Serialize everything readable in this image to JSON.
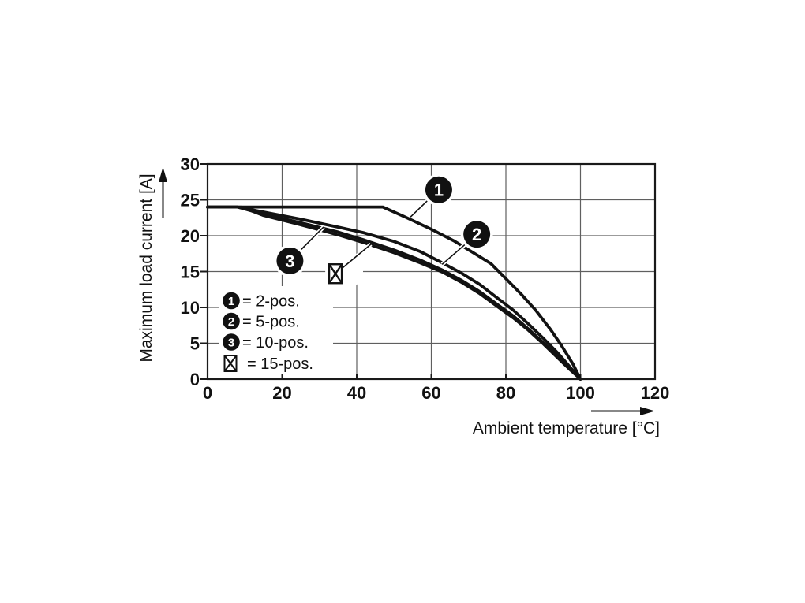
{
  "chart_data": {
    "type": "line",
    "title": "",
    "xlabel": "Ambient temperature [°C]",
    "ylabel": "Maximum load current [A]",
    "xlim": [
      0,
      120
    ],
    "ylim": [
      0,
      30
    ],
    "xticks": [
      0,
      20,
      40,
      60,
      80,
      100,
      120
    ],
    "yticks": [
      0,
      5,
      10,
      15,
      20,
      25,
      30
    ],
    "grid": true,
    "grid_color": "#5f5f5f",
    "frame_color": "#1a1a1a",
    "curve_color": "#121212",
    "background_color": "#ffffff",
    "series": [
      {
        "name": "2-pos.",
        "badge": "1",
        "points": [
          [
            0,
            24
          ],
          [
            47,
            24
          ],
          [
            53,
            22.6
          ],
          [
            60,
            20.9
          ],
          [
            66,
            19.3
          ],
          [
            72,
            17.4
          ],
          [
            76,
            16.1
          ],
          [
            80,
            14.0
          ],
          [
            84,
            11.9
          ],
          [
            88,
            9.6
          ],
          [
            92,
            6.9
          ],
          [
            95,
            4.6
          ],
          [
            98,
            2.1
          ],
          [
            100,
            0
          ]
        ]
      },
      {
        "name": "5-pos.",
        "badge": "2",
        "points": [
          [
            0,
            24
          ],
          [
            8,
            24
          ],
          [
            15,
            23.3
          ],
          [
            25,
            22.3
          ],
          [
            35,
            21.2
          ],
          [
            42,
            20.4
          ],
          [
            50,
            19.2
          ],
          [
            57,
            17.8
          ],
          [
            63,
            16.2
          ],
          [
            68,
            14.8
          ],
          [
            73,
            13.2
          ],
          [
            78,
            11.2
          ],
          [
            82,
            9.6
          ],
          [
            86,
            7.7
          ],
          [
            90,
            5.7
          ],
          [
            94,
            3.6
          ],
          [
            97,
            1.8
          ],
          [
            100,
            0
          ]
        ]
      },
      {
        "name": "10-pos.",
        "badge": "3",
        "points": [
          [
            0,
            24
          ],
          [
            8,
            24
          ],
          [
            15,
            23.0
          ],
          [
            25,
            21.8
          ],
          [
            35,
            20.5
          ],
          [
            42,
            19.4
          ],
          [
            50,
            18.0
          ],
          [
            57,
            16.6
          ],
          [
            63,
            15.2
          ],
          [
            68,
            13.8
          ],
          [
            73,
            12.2
          ],
          [
            78,
            10.3
          ],
          [
            82,
            8.8
          ],
          [
            86,
            7.0
          ],
          [
            90,
            5.1
          ],
          [
            94,
            3.1
          ],
          [
            97,
            1.5
          ],
          [
            100,
            0
          ]
        ]
      },
      {
        "name": "15-pos.",
        "badge": "box-x",
        "points": [
          [
            0,
            24
          ],
          [
            9,
            24
          ],
          [
            15,
            22.8
          ],
          [
            25,
            21.5
          ],
          [
            35,
            20.1
          ],
          [
            42,
            19.0
          ],
          [
            50,
            17.6
          ],
          [
            57,
            16.2
          ],
          [
            63,
            14.9
          ],
          [
            68,
            13.5
          ],
          [
            73,
            11.9
          ],
          [
            78,
            10.0
          ],
          [
            82,
            8.5
          ],
          [
            86,
            6.8
          ],
          [
            90,
            4.9
          ],
          [
            94,
            2.9
          ],
          [
            97,
            1.4
          ],
          [
            100,
            0
          ]
        ]
      }
    ],
    "legend": {
      "position": "inside-bottom-left",
      "items": [
        {
          "badge": "1",
          "label": "= 2-pos."
        },
        {
          "badge": "2",
          "label": "= 5-pos."
        },
        {
          "badge": "3",
          "label": "= 10-pos."
        },
        {
          "badge": "box-x",
          "label": "= 15-pos."
        }
      ]
    },
    "annotations": [
      {
        "badge": "1",
        "x": 62.0,
        "y": 26.4,
        "target_x": 54.4,
        "target_y": 22.6
      },
      {
        "badge": "2",
        "x": 72.2,
        "y": 20.2,
        "target_x": 62.9,
        "target_y": 16.0
      },
      {
        "badge": "3",
        "x": 22.1,
        "y": 16.5,
        "target_x": 31.1,
        "target_y": 21.2
      },
      {
        "badge": "box-x",
        "x": 34.3,
        "y": 14.7,
        "target_x": 43.8,
        "target_y": 18.8
      }
    ]
  }
}
